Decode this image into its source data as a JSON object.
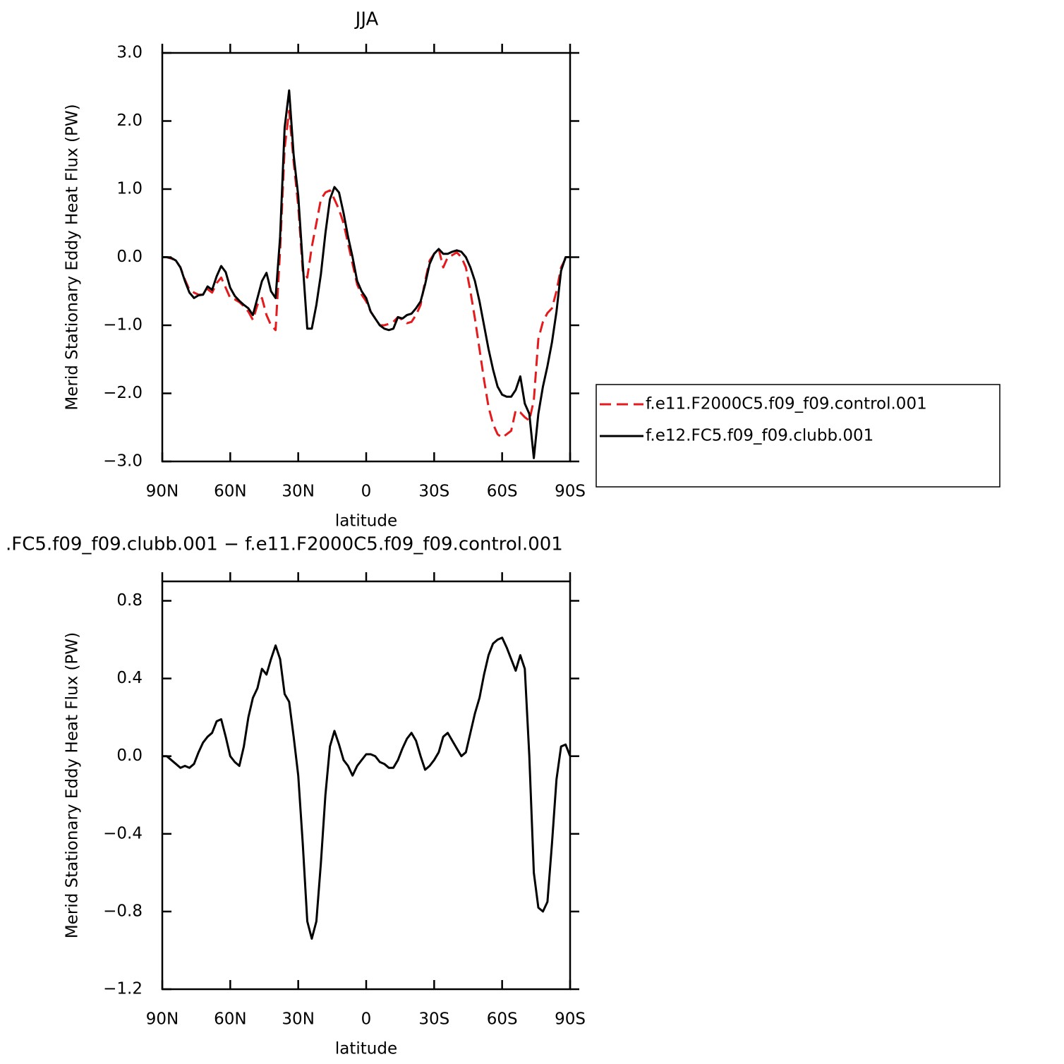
{
  "chart_data": [
    {
      "type": "line",
      "title": "JJA",
      "xlabel": "latitude",
      "ylabel": "Merid Stationary Eddy Heat Flux (PW)",
      "legend": "right",
      "xlim": [
        90,
        -90
      ],
      "xticks": [
        {
          "value": 90,
          "label": "90N"
        },
        {
          "value": 60,
          "label": "60N"
        },
        {
          "value": 30,
          "label": "30N"
        },
        0,
        {
          "value": -30,
          "label": "30S"
        },
        {
          "value": -60,
          "label": "60S"
        },
        {
          "value": -90,
          "label": "90S"
        }
      ],
      "ylim": [
        -3,
        3
      ],
      "yticks": [
        {
          "value": 3,
          "label": "3.0"
        },
        {
          "value": 2,
          "label": "2.0"
        },
        {
          "value": 1,
          "label": "1.0"
        },
        {
          "value": 0,
          "label": "0.0"
        },
        {
          "value": -1,
          "label": "−1.0"
        },
        {
          "value": -2,
          "label": "−2.0"
        },
        {
          "value": -3,
          "label": "−3.0"
        }
      ],
      "x": [
        90,
        88,
        86,
        84,
        82,
        80,
        78,
        76,
        74,
        72,
        70,
        68,
        66,
        64,
        62,
        60,
        58,
        56,
        54,
        52,
        50,
        48,
        46,
        44,
        42,
        40,
        38,
        36,
        34,
        32,
        30,
        28,
        26,
        24,
        22,
        20,
        18,
        16,
        14,
        12,
        10,
        8,
        6,
        4,
        2,
        0,
        -2,
        -4,
        -6,
        -8,
        -10,
        -12,
        -14,
        -16,
        -18,
        -20,
        -22,
        -24,
        -26,
        -28,
        -30,
        -32,
        -34,
        -36,
        -38,
        -40,
        -42,
        -44,
        -46,
        -48,
        -50,
        -52,
        -54,
        -56,
        -58,
        -60,
        -62,
        -64,
        -66,
        -68,
        -70,
        -72,
        -74,
        -76,
        -78,
        -80,
        -82,
        -84,
        -86,
        -88,
        -90
      ],
      "series": [
        {
          "name": "f.e11.F2000C5.f09_f09.control.001",
          "color": "#e41a1c",
          "dashed": true,
          "values": [
            0,
            0,
            -0.02,
            -0.05,
            -0.15,
            -0.33,
            -0.48,
            -0.52,
            -0.55,
            -0.55,
            -0.47,
            -0.52,
            -0.38,
            -0.3,
            -0.45,
            -0.6,
            -0.62,
            -0.66,
            -0.72,
            -0.8,
            -0.92,
            -0.7,
            -0.6,
            -0.85,
            -1.0,
            -1.07,
            0.1,
            1.6,
            2.15,
            1.4,
            0.75,
            -0.2,
            -0.3,
            0.15,
            0.5,
            0.85,
            0.95,
            0.98,
            0.85,
            0.7,
            0.5,
            0.2,
            -0.1,
            -0.4,
            -0.55,
            -0.65,
            -0.8,
            -0.9,
            -1.0,
            -1.0,
            -0.98,
            -0.95,
            -0.88,
            -0.92,
            -0.97,
            -0.95,
            -0.85,
            -0.7,
            -0.35,
            -0.05,
            0.05,
            0.12,
            -0.15,
            0.0,
            0.03,
            0.07,
            0.0,
            -0.15,
            -0.5,
            -0.9,
            -1.35,
            -1.8,
            -2.2,
            -2.45,
            -2.6,
            -2.65,
            -2.6,
            -2.55,
            -2.25,
            -2.28,
            -2.35,
            -2.4,
            -2.1,
            -1.2,
            -0.95,
            -0.82,
            -0.75,
            -0.5,
            -0.15,
            -0.02,
            0
          ]
        },
        {
          "name": "f.e12.FC5.f09_f09.clubb.001",
          "color": "#000000",
          "dashed": false,
          "values": [
            0,
            0,
            -0.01,
            -0.05,
            -0.15,
            -0.35,
            -0.52,
            -0.6,
            -0.56,
            -0.55,
            -0.43,
            -0.48,
            -0.28,
            -0.13,
            -0.22,
            -0.45,
            -0.57,
            -0.64,
            -0.7,
            -0.75,
            -0.85,
            -0.6,
            -0.35,
            -0.23,
            -0.5,
            -0.6,
            0.3,
            1.9,
            2.45,
            1.5,
            0.9,
            -0.1,
            -1.05,
            -1.05,
            -0.7,
            -0.25,
            0.35,
            0.85,
            1.03,
            0.95,
            0.65,
            0.3,
            0.0,
            -0.35,
            -0.5,
            -0.6,
            -0.8,
            -0.9,
            -1.0,
            -1.05,
            -1.07,
            -1.05,
            -0.88,
            -0.9,
            -0.85,
            -0.83,
            -0.75,
            -0.65,
            -0.4,
            -0.1,
            0.05,
            0.12,
            0.05,
            0.05,
            0.08,
            0.1,
            0.08,
            0.0,
            -0.15,
            -0.35,
            -0.65,
            -1.0,
            -1.35,
            -1.65,
            -1.9,
            -2.02,
            -2.05,
            -2.05,
            -1.95,
            -1.75,
            -2.15,
            -2.3,
            -2.95,
            -2.3,
            -1.9,
            -1.6,
            -1.25,
            -0.8,
            -0.2,
            0.0,
            0
          ]
        }
      ]
    },
    {
      "type": "line",
      "title": ".FC5.f09_f09.clubb.001 − f.e11.F2000C5.f09_f09.control.001",
      "xlabel": "latitude",
      "ylabel": "Merid Stationary Eddy Heat Flux (PW)",
      "xlim": [
        90,
        -90
      ],
      "xticks": [
        {
          "value": 90,
          "label": "90N"
        },
        {
          "value": 60,
          "label": "60N"
        },
        {
          "value": 30,
          "label": "30N"
        },
        0,
        {
          "value": -30,
          "label": "30S"
        },
        {
          "value": -60,
          "label": "60S"
        },
        {
          "value": -90,
          "label": "90S"
        }
      ],
      "ylim": [
        -1.2,
        0.9
      ],
      "yticks": [
        0.8,
        0.4,
        {
          "value": 0,
          "label": "0.0"
        },
        {
          "value": -0.4,
          "label": "−0.4"
        },
        {
          "value": -0.8,
          "label": "−0.8"
        },
        {
          "value": -1.2,
          "label": "−1.2"
        }
      ],
      "color": "#000000",
      "x": [
        90,
        88,
        86,
        84,
        82,
        80,
        78,
        76,
        74,
        72,
        70,
        68,
        66,
        64,
        62,
        60,
        58,
        56,
        54,
        52,
        50,
        48,
        46,
        44,
        42,
        40,
        38,
        36,
        34,
        32,
        30,
        28,
        26,
        24,
        22,
        20,
        18,
        16,
        14,
        12,
        10,
        8,
        6,
        4,
        2,
        0,
        -2,
        -4,
        -6,
        -8,
        -10,
        -12,
        -14,
        -16,
        -18,
        -20,
        -22,
        -24,
        -26,
        -28,
        -30,
        -32,
        -34,
        -36,
        -38,
        -40,
        -42,
        -44,
        -46,
        -48,
        -50,
        -52,
        -54,
        -56,
        -58,
        -60,
        -62,
        -64,
        -66,
        -68,
        -70,
        -72,
        -74,
        -76,
        -78,
        -80,
        -82,
        -84,
        -86,
        -88,
        -90
      ],
      "values": [
        0,
        0,
        -0.02,
        -0.04,
        -0.06,
        -0.05,
        -0.06,
        -0.04,
        0.02,
        0.07,
        0.1,
        0.12,
        0.18,
        0.19,
        0.1,
        0.0,
        -0.03,
        -0.05,
        0.05,
        0.2,
        0.3,
        0.35,
        0.45,
        0.42,
        0.5,
        0.57,
        0.5,
        0.32,
        0.28,
        0.1,
        -0.1,
        -0.45,
        -0.85,
        -0.94,
        -0.85,
        -0.55,
        -0.2,
        0.05,
        0.13,
        0.06,
        -0.02,
        -0.05,
        -0.1,
        -0.05,
        -0.02,
        0.01,
        0.01,
        0.0,
        -0.03,
        -0.04,
        -0.06,
        -0.06,
        -0.02,
        0.04,
        0.09,
        0.12,
        0.08,
        0.0,
        -0.07,
        -0.05,
        -0.02,
        0.02,
        0.1,
        0.12,
        0.08,
        0.04,
        0.0,
        0.02,
        0.12,
        0.22,
        0.3,
        0.42,
        0.52,
        0.58,
        0.6,
        0.61,
        0.56,
        0.5,
        0.44,
        0.52,
        0.45,
        0.0,
        -0.6,
        -0.78,
        -0.8,
        -0.75,
        -0.45,
        -0.12,
        0.05,
        0.06,
        0
      ]
    }
  ]
}
